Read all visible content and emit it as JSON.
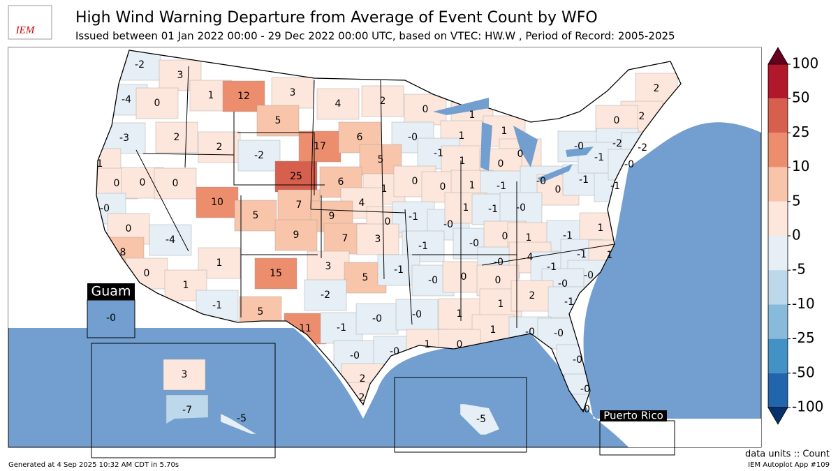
{
  "header": {
    "logo": "IEM",
    "title": "High Wind Warning Departure from Average of Event Count by WFO",
    "subtitle": "Issued between 01 Jan 2022 00:00 - 29 Dec 2022 00:00 UTC, based on VTEC: HW.W  , Period of Record: 2005-2025"
  },
  "map": {
    "wfo_labels": [
      "-2",
      "3",
      "-4",
      "0",
      "1",
      "12",
      "3",
      "4",
      "2",
      "0",
      "1",
      "1",
      "1",
      "-3",
      "2",
      "2",
      "5",
      "17",
      "6",
      "-0",
      "-1",
      "1",
      "0",
      "0",
      "5",
      "-2",
      "1",
      "0",
      "0",
      "0",
      "25",
      "6",
      "1",
      "0",
      "0",
      "1",
      "-1",
      "-0",
      "0",
      "-1",
      "-1",
      "-0",
      "10",
      "7",
      "5",
      "4",
      "9",
      "0",
      "-1",
      "-0",
      "1",
      "-1",
      "-0",
      "0",
      "-4",
      "9",
      "7",
      "3",
      "-1",
      "-0",
      "0",
      "1",
      "-1",
      "1",
      "8",
      "1",
      "15",
      "3",
      "5",
      "-1",
      "-0",
      "0",
      "-0",
      "4",
      "-1",
      "-1",
      "1",
      "0",
      "1",
      "-0",
      "-0",
      "-2",
      "0",
      "-1",
      "5",
      "1",
      "1",
      "2",
      "-1",
      "11",
      "-1",
      "-0",
      "-0",
      "1",
      "-0",
      "-0",
      "-0",
      "-0",
      "1",
      "0",
      "-0",
      "2",
      "2",
      "-0",
      "-0",
      "2",
      "2",
      "0",
      "-0",
      "-2",
      "-2",
      "-1",
      "-0",
      "3",
      "-7",
      "-5",
      "-5",
      "-0"
    ],
    "insets": {
      "guam": "Guam",
      "puerto_rico": "Puerto Rico"
    }
  },
  "colorbar": {
    "ticks": [
      100,
      50,
      25,
      10,
      5,
      0,
      -5,
      -10,
      -25,
      -50,
      -100
    ],
    "colors": [
      "#67001f",
      "#b2182b",
      "#d6604d",
      "#ec8e6e",
      "#f8c5aa",
      "#fde7dc",
      "#e6eff6",
      "#bcd8ea",
      "#88bbdb",
      "#4292c6",
      "#2166ac",
      "#08306b"
    ],
    "units": "data units :: Count"
  },
  "footer": {
    "generated": "Generated at 4 Sep 2025 10:32 AM CDT in 5.70s",
    "app": "IEM Autoplot App #109"
  }
}
